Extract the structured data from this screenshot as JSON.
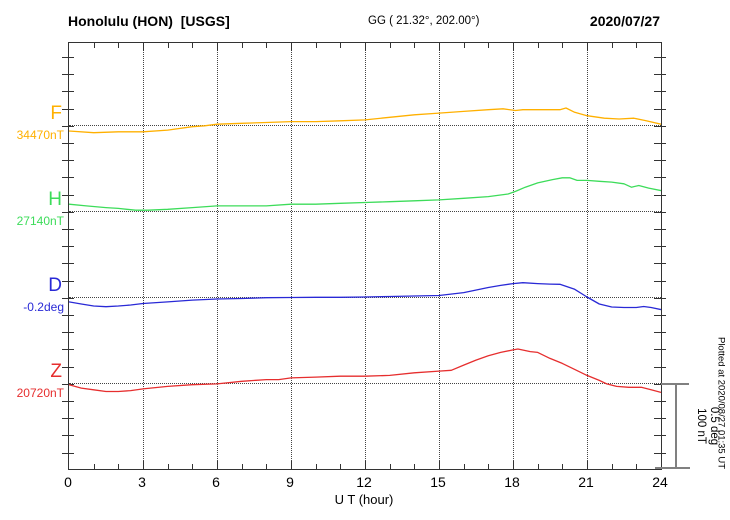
{
  "header": {
    "station": "Honolulu (HON)  [USGS]",
    "coordinates": "GG ( 21.32°, 202.00°)",
    "date": "2020/07/27"
  },
  "xaxis": {
    "title": "U T (hour)",
    "tick_labels": [
      "0",
      "3",
      "6",
      "9",
      "12",
      "15",
      "18",
      "21",
      "24"
    ],
    "range": [
      0,
      24
    ],
    "minor_tick_every_hours": 1,
    "major_tick_every_hours": 3
  },
  "scale_bar": {
    "nT_label": "100 nT",
    "deg_label": "0.5 deg",
    "nT": 100,
    "deg": 0.5,
    "color": "#808080"
  },
  "footer_note": "Plotted at 2020/08/27 01:35 UT",
  "colors": {
    "F": "#ffb000",
    "H": "#3ddc5a",
    "D": "#2929d6",
    "Z": "#e62e2e",
    "axis": "#333333",
    "grid": "#444444"
  },
  "chart_data": {
    "type": "line",
    "title": "Honolulu (HON) [USGS] magnetogram 2020/07/27",
    "xlabel": "U T (hour)",
    "x_range": [
      0,
      24
    ],
    "grid": "dotted vertical every 3 h, dotted horizontal at each trace baseline",
    "legend_position": "left margin (trace letter + baseline value)",
    "scale": {
      "nT_per_division": 100,
      "deg_per_division": 0.5
    },
    "values_are": "offsets from each trace baseline, in the trace unit",
    "series": [
      {
        "name": "F",
        "unit": "nT",
        "baseline": 34470,
        "baseline_label": "34470nT",
        "color": "#ffb000",
        "points": [
          [
            0,
            -7
          ],
          [
            1,
            -9
          ],
          [
            2,
            -8
          ],
          [
            3,
            -8
          ],
          [
            4,
            -6
          ],
          [
            5,
            -2
          ],
          [
            5.5,
            -1
          ],
          [
            6,
            1
          ],
          [
            7,
            2
          ],
          [
            8,
            3
          ],
          [
            9,
            4
          ],
          [
            10,
            4
          ],
          [
            11,
            5
          ],
          [
            12,
            6
          ],
          [
            13,
            9
          ],
          [
            14,
            12
          ],
          [
            15,
            14
          ],
          [
            16,
            16
          ],
          [
            17,
            18
          ],
          [
            17.6,
            19
          ],
          [
            18.1,
            17
          ],
          [
            18.4,
            18
          ],
          [
            19,
            18
          ],
          [
            19.9,
            18
          ],
          [
            20.15,
            20
          ],
          [
            20.5,
            15
          ],
          [
            21,
            11
          ],
          [
            21.7,
            8
          ],
          [
            22.3,
            7
          ],
          [
            22.9,
            8
          ],
          [
            23.4,
            5
          ],
          [
            24,
            1
          ]
        ]
      },
      {
        "name": "H",
        "unit": "nT",
        "baseline": 27140,
        "baseline_label": "27140nT",
        "color": "#3ddc5a",
        "points": [
          [
            0,
            8
          ],
          [
            0.7,
            6
          ],
          [
            1.5,
            4
          ],
          [
            2,
            3
          ],
          [
            2.7,
            1
          ],
          [
            3.2,
            1
          ],
          [
            4,
            2
          ],
          [
            5,
            4
          ],
          [
            6,
            6
          ],
          [
            7,
            6
          ],
          [
            8,
            6
          ],
          [
            9,
            8
          ],
          [
            10,
            8
          ],
          [
            11,
            9
          ],
          [
            12,
            10
          ],
          [
            13,
            11
          ],
          [
            14,
            12
          ],
          [
            15,
            13
          ],
          [
            16,
            15
          ],
          [
            17,
            17
          ],
          [
            17.8,
            20
          ],
          [
            18.1,
            23
          ],
          [
            18.5,
            28
          ],
          [
            19,
            33
          ],
          [
            19.6,
            37
          ],
          [
            20,
            39
          ],
          [
            20.3,
            39
          ],
          [
            20.6,
            36
          ],
          [
            21,
            36
          ],
          [
            21.5,
            35
          ],
          [
            22,
            34
          ],
          [
            22.5,
            32
          ],
          [
            22.8,
            28
          ],
          [
            23.1,
            30
          ],
          [
            23.5,
            27
          ],
          [
            24,
            24
          ]
        ]
      },
      {
        "name": "D",
        "unit": "deg",
        "baseline": -0.2,
        "baseline_label": "-0.2deg",
        "color": "#2929d6",
        "points": [
          [
            0,
            -0.029
          ],
          [
            0.5,
            -0.041
          ],
          [
            1,
            -0.053
          ],
          [
            1.5,
            -0.057
          ],
          [
            2,
            -0.053
          ],
          [
            2.5,
            -0.047
          ],
          [
            3,
            -0.038
          ],
          [
            4,
            -0.029
          ],
          [
            5,
            -0.018
          ],
          [
            6,
            -0.012
          ],
          [
            7,
            -0.009
          ],
          [
            8,
            -0.004
          ],
          [
            9,
            -0.003
          ],
          [
            10,
            -0.002
          ],
          [
            11,
            -0.002
          ],
          [
            12,
            0
          ],
          [
            13,
            0.003
          ],
          [
            14,
            0.006
          ],
          [
            15,
            0.009
          ],
          [
            16,
            0.026
          ],
          [
            17,
            0.056
          ],
          [
            17.5,
            0.068
          ],
          [
            18,
            0.079
          ],
          [
            18.4,
            0.084
          ],
          [
            19,
            0.079
          ],
          [
            19.5,
            0.076
          ],
          [
            19.9,
            0.075
          ],
          [
            20.5,
            0.045
          ],
          [
            21,
            0
          ],
          [
            21.5,
            -0.041
          ],
          [
            22,
            -0.059
          ],
          [
            22.5,
            -0.062
          ],
          [
            23,
            -0.062
          ],
          [
            23.3,
            -0.056
          ],
          [
            23.6,
            -0.062
          ],
          [
            24,
            -0.074
          ]
        ]
      },
      {
        "name": "Z",
        "unit": "nT",
        "baseline": 20720,
        "baseline_label": "20720nT",
        "color": "#e62e2e",
        "points": [
          [
            0,
            -2
          ],
          [
            0.5,
            -6
          ],
          [
            1,
            -8
          ],
          [
            1.5,
            -10
          ],
          [
            2,
            -10
          ],
          [
            2.5,
            -9
          ],
          [
            3,
            -7
          ],
          [
            4,
            -4
          ],
          [
            5,
            -2
          ],
          [
            6,
            -1
          ],
          [
            7,
            2
          ],
          [
            8,
            4
          ],
          [
            8.5,
            4
          ],
          [
            9,
            6
          ],
          [
            10,
            7
          ],
          [
            11,
            8
          ],
          [
            12,
            8
          ],
          [
            13,
            9
          ],
          [
            14,
            12
          ],
          [
            15,
            14
          ],
          [
            15.5,
            15
          ],
          [
            16,
            21
          ],
          [
            16.5,
            27
          ],
          [
            17,
            32
          ],
          [
            17.5,
            36
          ],
          [
            18,
            39
          ],
          [
            18.2,
            40
          ],
          [
            18.7,
            37
          ],
          [
            19,
            36
          ],
          [
            19.5,
            29
          ],
          [
            20,
            23
          ],
          [
            20.5,
            16
          ],
          [
            21,
            9
          ],
          [
            21.5,
            3
          ],
          [
            21.8,
            -1
          ],
          [
            22.2,
            -4
          ],
          [
            22.7,
            -5
          ],
          [
            23.2,
            -5
          ],
          [
            23.6,
            -8
          ],
          [
            24,
            -11
          ]
        ]
      }
    ]
  }
}
